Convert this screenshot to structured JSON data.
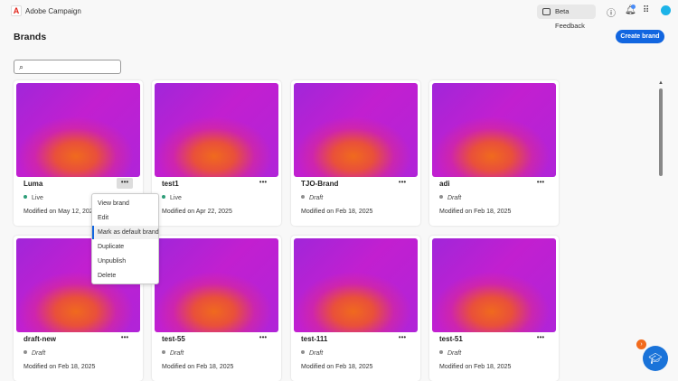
{
  "app": {
    "title": "Adobe Campaign",
    "logo": "A"
  },
  "topbar": {
    "beta_feedback": "Beta Feedback",
    "icons": [
      "help-icon",
      "bell-icon",
      "apps-grid-icon",
      "avatar"
    ]
  },
  "page": {
    "title": "Brands",
    "create_button": "Create brand",
    "search_placeholder": ""
  },
  "cards": [
    {
      "name": "Luma",
      "status": "Live",
      "status_color": "#2d9d78",
      "modified": "Modified on May 12, 2025"
    },
    {
      "name": "test1",
      "status": "Live",
      "status_color": "#2d9d78",
      "modified": "Modified on Apr 22, 2025"
    },
    {
      "name": "TJO-Brand",
      "status": "Draft",
      "status_color": "#8e8e8e",
      "modified": "Modified on Feb 18, 2025"
    },
    {
      "name": "adi",
      "status": "Draft",
      "status_color": "#8e8e8e",
      "modified": "Modified on Feb 18, 2025"
    },
    {
      "name": "draft-new",
      "status": "Draft",
      "status_color": "#8e8e8e",
      "modified": "Modified on Feb 18, 2025"
    },
    {
      "name": "test-55",
      "status": "Draft",
      "status_color": "#8e8e8e",
      "modified": "Modified on Feb 18, 2025"
    },
    {
      "name": "test-111",
      "status": "Draft",
      "status_color": "#8e8e8e",
      "modified": "Modified on Feb 18, 2025"
    },
    {
      "name": "test-51",
      "status": "Draft",
      "status_color": "#8e8e8e",
      "modified": "Modified on Feb 18, 2025"
    }
  ],
  "more_label": "•••",
  "context_menu": {
    "items": [
      "View brand",
      "Edit",
      "Mark as default brand",
      "Duplicate",
      "Unpublish",
      "Delete"
    ],
    "highlighted": "Mark as default brand"
  }
}
